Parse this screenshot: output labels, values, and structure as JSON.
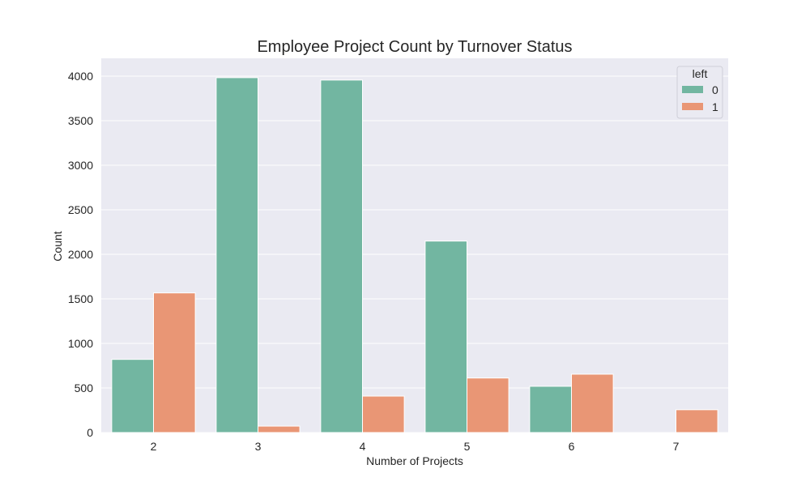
{
  "chart_data": {
    "type": "bar",
    "title": "Employee Project Count by Turnover Status",
    "xlabel": "Number of Projects",
    "ylabel": "Count",
    "categories": [
      "2",
      "3",
      "4",
      "5",
      "6",
      "7"
    ],
    "ylim": [
      0,
      4200
    ],
    "yticks": [
      0,
      500,
      1000,
      1500,
      2000,
      2500,
      3000,
      3500,
      4000
    ],
    "grid": true,
    "legend": {
      "title": "left",
      "position": "top-right"
    },
    "series": [
      {
        "name": "0",
        "values": [
          821,
          3983,
          3956,
          2149,
          519,
          0
        ]
      },
      {
        "name": "1",
        "values": [
          1567,
          72,
          409,
          612,
          655,
          256
        ]
      }
    ]
  },
  "colors": {
    "series": [
      "#72b6a1",
      "#e99675"
    ],
    "plot_background": "#eaeaf2",
    "grid": "#ffffff",
    "text": "#262626"
  }
}
